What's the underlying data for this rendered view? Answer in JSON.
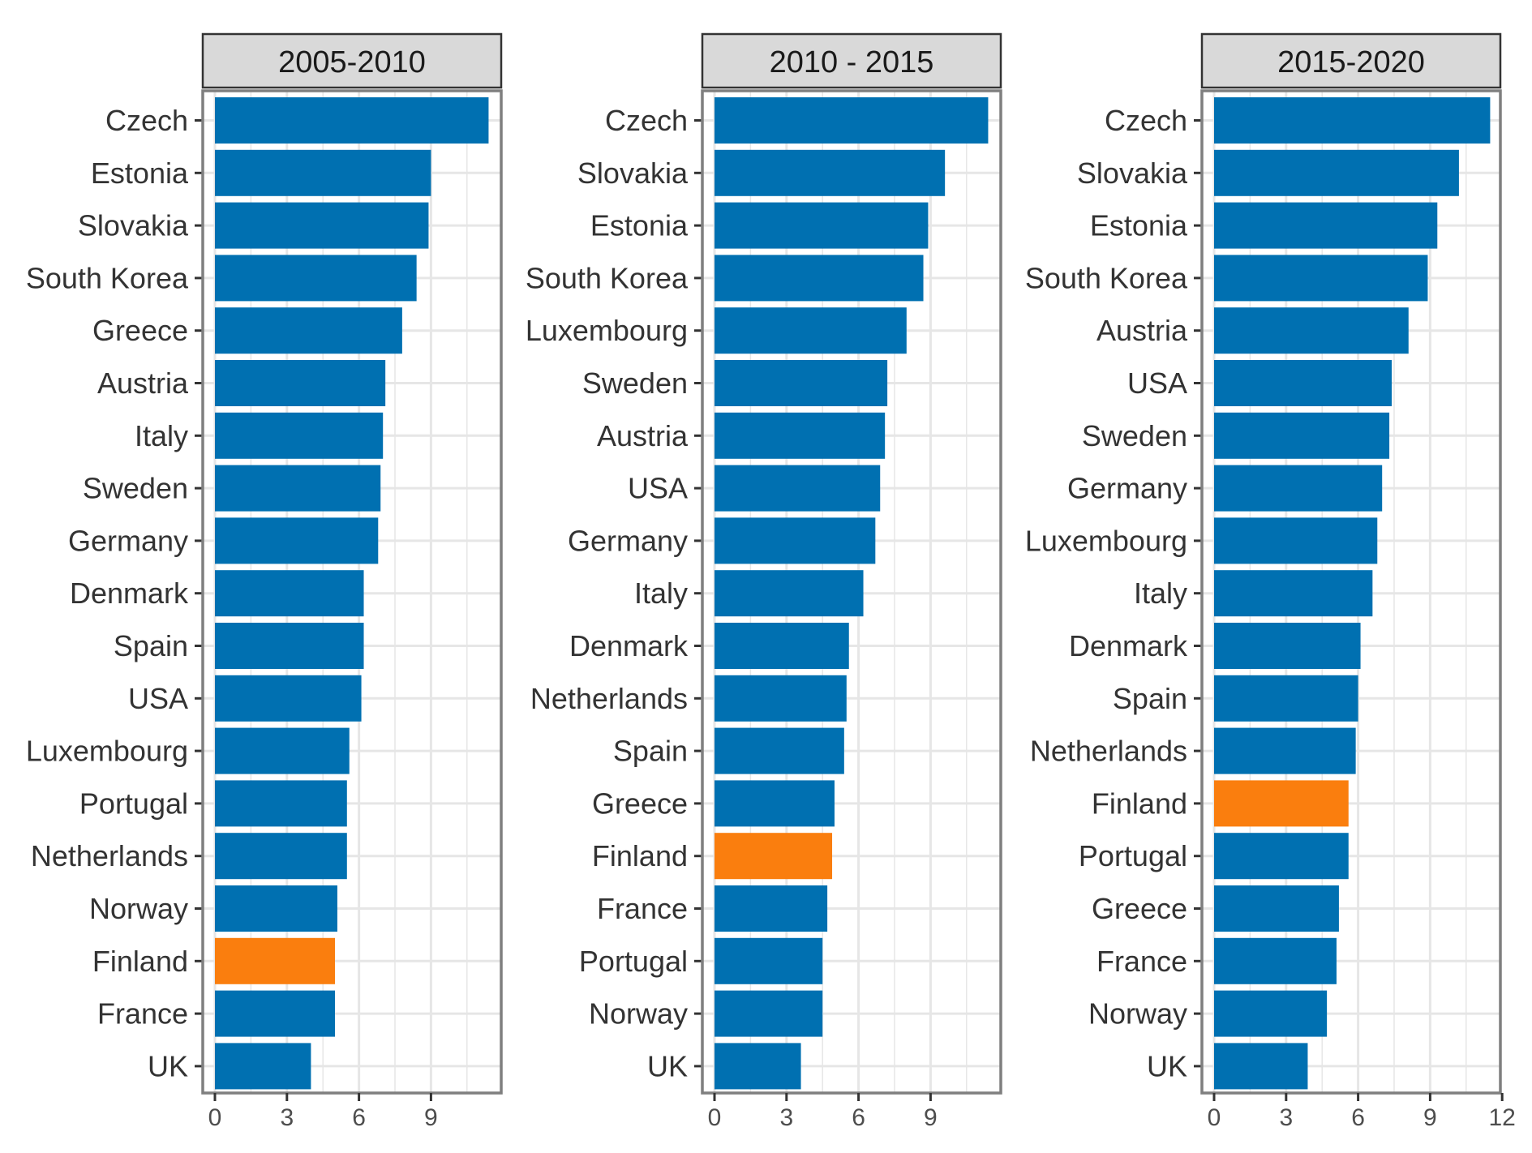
{
  "colors": {
    "bar": "#0070b1",
    "highlight": "#fa7e0e",
    "grid": "#e6e6e6",
    "panel_border": "#7f7f7f",
    "strip_fill": "#d9d9d9",
    "strip_border": "#333333"
  },
  "chart_data": {
    "type": "bar",
    "orientation": "horizontal",
    "grid": true,
    "highlight_category": "Finland",
    "xlim": [
      0,
      12
    ],
    "xticks": [
      "0",
      "3",
      "6",
      "9",
      "12"
    ],
    "title": "",
    "xlabel": "",
    "ylabel": "",
    "panels": [
      {
        "title": "2005-2010",
        "xticks": [
          "0",
          "3",
          "6",
          "9"
        ],
        "categories": [
          "Czech",
          "Estonia",
          "Slovakia",
          "South Korea",
          "Greece",
          "Austria",
          "Italy",
          "Sweden",
          "Germany",
          "Denmark",
          "Spain",
          "USA",
          "Luxembourg",
          "Portugal",
          "Netherlands",
          "Norway",
          "Finland",
          "France",
          "UK"
        ],
        "values": [
          11.4,
          9.0,
          8.9,
          8.4,
          7.8,
          7.1,
          7.0,
          6.9,
          6.8,
          6.2,
          6.2,
          6.1,
          5.6,
          5.5,
          5.5,
          5.1,
          5.0,
          5.0,
          4.0
        ]
      },
      {
        "title": "2010 - 2015",
        "xticks": [
          "0",
          "3",
          "6",
          "9"
        ],
        "categories": [
          "Czech",
          "Slovakia",
          "Estonia",
          "South Korea",
          "Luxembourg",
          "Sweden",
          "Austria",
          "USA",
          "Germany",
          "Italy",
          "Denmark",
          "Netherlands",
          "Spain",
          "Greece",
          "Finland",
          "France",
          "Portugal",
          "Norway",
          "UK"
        ],
        "values": [
          11.4,
          9.6,
          8.9,
          8.7,
          8.0,
          7.2,
          7.1,
          6.9,
          6.7,
          6.2,
          5.6,
          5.5,
          5.4,
          5.0,
          4.9,
          4.7,
          4.5,
          4.5,
          3.6
        ]
      },
      {
        "title": "2015-2020",
        "xticks": [
          "0",
          "3",
          "6",
          "9",
          "12"
        ],
        "categories": [
          "Czech",
          "Slovakia",
          "Estonia",
          "South Korea",
          "Austria",
          "USA",
          "Sweden",
          "Germany",
          "Luxembourg",
          "Italy",
          "Denmark",
          "Spain",
          "Netherlands",
          "Finland",
          "Portugal",
          "Greece",
          "France",
          "Norway",
          "UK"
        ],
        "values": [
          11.5,
          10.2,
          9.3,
          8.9,
          8.1,
          7.4,
          7.3,
          7.0,
          6.8,
          6.6,
          6.1,
          6.0,
          5.9,
          5.6,
          5.6,
          5.2,
          5.1,
          4.7,
          3.9
        ]
      }
    ]
  }
}
